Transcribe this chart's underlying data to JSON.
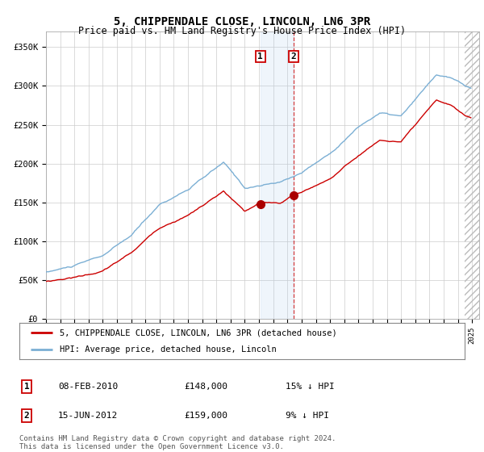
{
  "title": "5, CHIPPENDALE CLOSE, LINCOLN, LN6 3PR",
  "subtitle": "Price paid vs. HM Land Registry's House Price Index (HPI)",
  "title_fontsize": 10,
  "subtitle_fontsize": 8.5,
  "hpi_color": "#7bafd4",
  "price_color": "#cc0000",
  "background_color": "#ffffff",
  "grid_color": "#cccccc",
  "ylim": [
    0,
    370000
  ],
  "yticks": [
    0,
    50000,
    100000,
    150000,
    200000,
    250000,
    300000,
    350000
  ],
  "ytick_labels": [
    "£0",
    "£50K",
    "£100K",
    "£150K",
    "£200K",
    "£250K",
    "£300K",
    "£350K"
  ],
  "sale1_date_num": 2010.1,
  "sale1_price": 148000,
  "sale1_label": "08-FEB-2010",
  "sale1_amount": "£148,000",
  "sale1_hpi": "15% ↓ HPI",
  "sale2_date_num": 2012.45,
  "sale2_price": 159000,
  "sale2_label": "15-JUN-2012",
  "sale2_amount": "£159,000",
  "sale2_hpi": "9% ↓ HPI",
  "shade_start": 2010.1,
  "shade_end": 2012.45,
  "legend_line1": "5, CHIPPENDALE CLOSE, LINCOLN, LN6 3PR (detached house)",
  "legend_line2": "HPI: Average price, detached house, Lincoln",
  "footer": "Contains HM Land Registry data © Crown copyright and database right 2024.\nThis data is licensed under the Open Government Licence v3.0.",
  "hatch_start": 2024.5,
  "xmin": 1995.0,
  "xmax": 2025.5
}
